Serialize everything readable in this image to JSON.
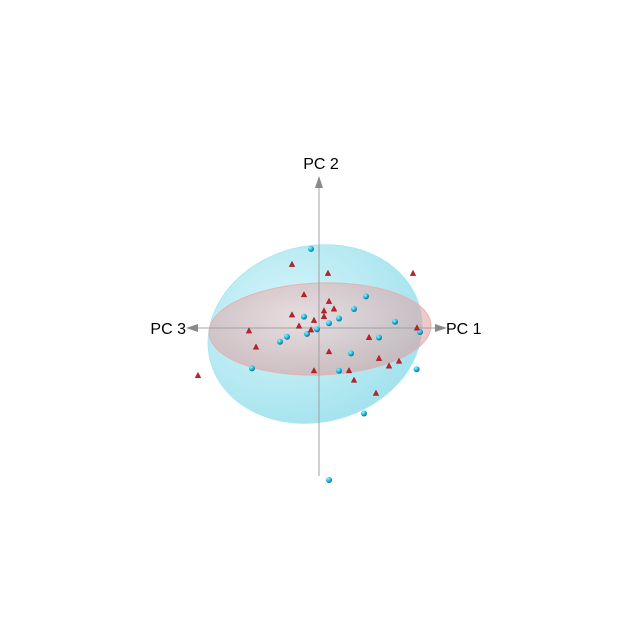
{
  "chart_data": {
    "type": "scatter",
    "dimensions": 3,
    "axes": {
      "x": "PC 1",
      "y": "PC 2",
      "z": "PC 3"
    },
    "grid": false,
    "legend": "none",
    "groups": [
      {
        "color": "#20c8e8",
        "ellipsoid_color": "#8fe0ec",
        "marker": "sphere",
        "points": [
          [
            0.95,
            -0.45,
            -0.13
          ],
          [
            -0.1,
            0.82,
            -0.1
          ],
          [
            0.75,
            0.06,
            -0.05
          ],
          [
            0.6,
            -0.1,
            0.0
          ],
          [
            0.45,
            0.32,
            -0.1
          ],
          [
            0.35,
            0.2,
            0.0
          ],
          [
            0.2,
            0.1,
            0.0
          ],
          [
            0.1,
            0.05,
            0.0
          ],
          [
            0.0,
            0.0,
            0.1
          ],
          [
            -0.1,
            -0.05,
            0.1
          ],
          [
            -0.15,
            0.12,
            0.0
          ],
          [
            -0.3,
            -0.08,
            0.1
          ],
          [
            -0.35,
            -0.12,
            0.2
          ],
          [
            -0.55,
            -0.35,
            0.6
          ],
          [
            0.2,
            -0.45,
            0.0
          ],
          [
            0.3,
            -0.28,
            -0.1
          ],
          [
            0.95,
            -0.08,
            -0.3
          ],
          [
            0.45,
            -0.9,
            0.0
          ],
          [
            0.1,
            -1.6,
            0.0
          ]
        ]
      },
      {
        "color": "#c81e28",
        "ellipsoid_color": "#f0a8a8",
        "marker": "tetrahedron",
        "points": [
          [
            -0.3,
            0.65,
            -0.15
          ],
          [
            0.05,
            0.55,
            -0.2
          ],
          [
            0.9,
            0.55,
            -0.2
          ],
          [
            -0.15,
            0.35,
            0.0
          ],
          [
            0.1,
            0.28,
            0.0
          ],
          [
            0.05,
            0.18,
            0.0
          ],
          [
            0.15,
            0.2,
            0.0
          ],
          [
            0.05,
            0.12,
            0.0
          ],
          [
            -0.05,
            0.08,
            0.0
          ],
          [
            -0.2,
            0.02,
            0.0
          ],
          [
            -0.25,
            0.15,
            0.1
          ],
          [
            -0.08,
            -0.02,
            0.0
          ],
          [
            -0.55,
            -0.15,
            0.4
          ],
          [
            -0.62,
            0.02,
            0.4
          ],
          [
            0.5,
            -0.1,
            0.0
          ],
          [
            0.1,
            -0.25,
            0.0
          ],
          [
            0.6,
            -0.32,
            0.0
          ],
          [
            0.3,
            -0.45,
            0.0
          ],
          [
            0.35,
            -0.55,
            0.0
          ],
          [
            0.7,
            -0.4,
            0.0
          ],
          [
            0.8,
            -0.35,
            0.0
          ],
          [
            0.55,
            -0.7,
            -0.1
          ],
          [
            -1.05,
            -0.4,
            0.8
          ],
          [
            0.98,
            0.0,
            0.0
          ],
          [
            -0.05,
            -0.45,
            0.0
          ]
        ]
      }
    ]
  }
}
